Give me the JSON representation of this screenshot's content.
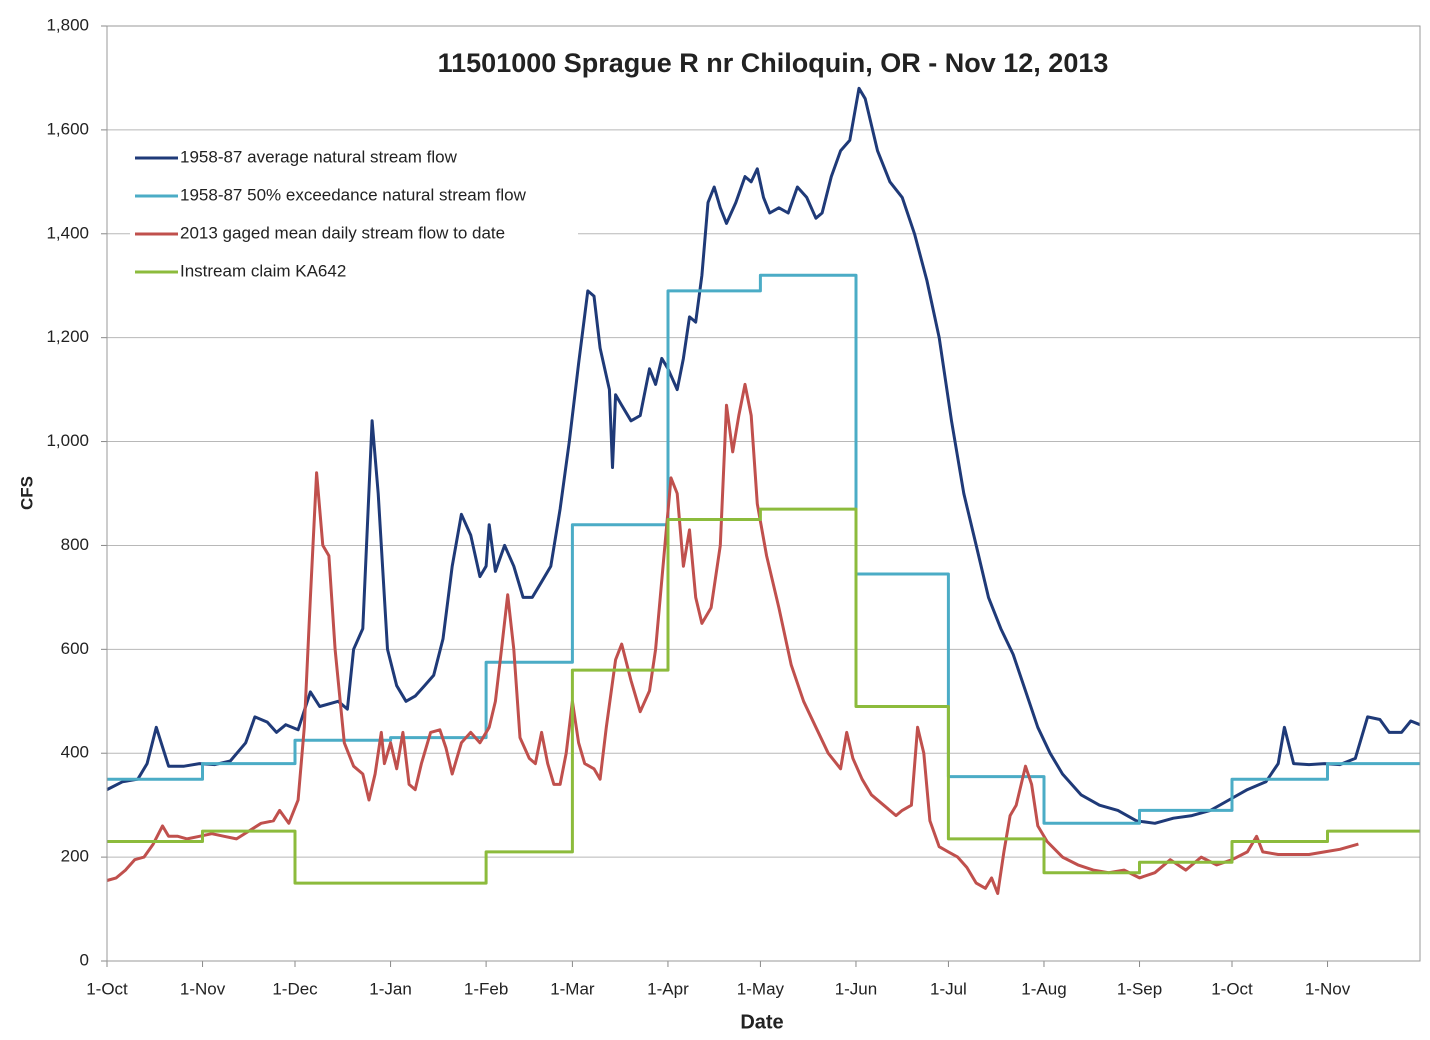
{
  "chart_data": {
    "type": "line",
    "title": "11501000 Sprague R nr Chiloquin, OR   -  Nov 12, 2013",
    "x_label": "Date",
    "y_label": "CFS",
    "xlim": [
      0,
      426
    ],
    "xticks": [
      {
        "value": 0,
        "label": "1-Oct"
      },
      {
        "value": 31,
        "label": "1-Nov"
      },
      {
        "value": 61,
        "label": "1-Dec"
      },
      {
        "value": 92,
        "label": "1-Jan"
      },
      {
        "value": 123,
        "label": "1-Feb"
      },
      {
        "value": 151,
        "label": "1-Mar"
      },
      {
        "value": 182,
        "label": "1-Apr"
      },
      {
        "value": 212,
        "label": "1-May"
      },
      {
        "value": 243,
        "label": "1-Jun"
      },
      {
        "value": 273,
        "label": "1-Jul"
      },
      {
        "value": 304,
        "label": "1-Aug"
      },
      {
        "value": 335,
        "label": "1-Sep"
      },
      {
        "value": 365,
        "label": "1-Oct"
      },
      {
        "value": 396,
        "label": "1-Nov"
      }
    ],
    "ylim": [
      0,
      1800
    ],
    "yticks": [
      0,
      200,
      400,
      600,
      800,
      {
        "value": 1000,
        "label": "1,000"
      },
      {
        "value": 1200,
        "label": "1,200"
      },
      {
        "value": 1400,
        "label": "1,400"
      },
      {
        "value": 1600,
        "label": "1,600"
      },
      {
        "value": 1800,
        "label": "1,800"
      }
    ],
    "grid": true,
    "legend": "upper-left",
    "series": [
      {
        "name": "1958-87 average natural stream flow",
        "color": "#1f3a78",
        "x": [
          0,
          5,
          10,
          13,
          16,
          20,
          25,
          30,
          35,
          40,
          45,
          48,
          52,
          55,
          58,
          62,
          66,
          69,
          75,
          78,
          80,
          83,
          86,
          88,
          91,
          94,
          97,
          100,
          103,
          106,
          109,
          112,
          115,
          118,
          121,
          123,
          124,
          126,
          129,
          132,
          135,
          138,
          141,
          144,
          147,
          150,
          153,
          156,
          158,
          160,
          163,
          164,
          165,
          167,
          170,
          173,
          176,
          178,
          180,
          182,
          185,
          187,
          189,
          191,
          193,
          195,
          197,
          199,
          201,
          204,
          207,
          209,
          211,
          213,
          215,
          218,
          221,
          224,
          227,
          230,
          232,
          235,
          238,
          241,
          244,
          246,
          250,
          254,
          258,
          262,
          266,
          270,
          274,
          278,
          282,
          286,
          290,
          294,
          298,
          302,
          306,
          310,
          316,
          322,
          328,
          334,
          340,
          346,
          352,
          358,
          364,
          370,
          376,
          380,
          382,
          385,
          390,
          395,
          400,
          405,
          409,
          413,
          416,
          420,
          423,
          426
        ],
        "values": [
          330,
          345,
          350,
          380,
          450,
          375,
          375,
          380,
          378,
          385,
          420,
          470,
          460,
          440,
          455,
          445,
          518,
          490,
          500,
          485,
          600,
          640,
          1040,
          900,
          600,
          530,
          500,
          510,
          530,
          550,
          620,
          760,
          860,
          820,
          740,
          760,
          840,
          750,
          800,
          760,
          700,
          700,
          730,
          760,
          870,
          1000,
          1150,
          1290,
          1280,
          1180,
          1100,
          950,
          1090,
          1070,
          1040,
          1050,
          1140,
          1110,
          1160,
          1140,
          1100,
          1160,
          1240,
          1230,
          1320,
          1460,
          1490,
          1450,
          1420,
          1460,
          1510,
          1500,
          1525,
          1470,
          1440,
          1450,
          1440,
          1490,
          1470,
          1430,
          1440,
          1510,
          1560,
          1580,
          1680,
          1660,
          1560,
          1500,
          1470,
          1400,
          1310,
          1200,
          1040,
          900,
          800,
          700,
          640,
          590,
          520,
          450,
          400,
          360,
          320,
          300,
          290,
          270,
          265,
          275,
          280,
          290,
          310,
          330,
          345,
          380,
          450,
          380,
          378,
          380,
          378,
          390,
          470,
          465,
          440,
          440,
          462,
          455
        ]
      },
      {
        "name": "1958-87 50% exceedance natural stream flow",
        "color": "#4bacc6",
        "x": [
          0,
          31,
          31,
          61,
          61,
          92,
          92,
          123,
          123,
          151,
          151,
          182,
          182,
          212,
          212,
          243,
          243,
          273,
          273,
          304,
          304,
          335,
          335,
          365,
          365,
          396,
          396,
          426
        ],
        "values": [
          350,
          350,
          380,
          380,
          425,
          425,
          430,
          430,
          575,
          575,
          840,
          840,
          1290,
          1290,
          1320,
          1320,
          745,
          745,
          355,
          355,
          265,
          265,
          290,
          290,
          350,
          350,
          380,
          380
        ]
      },
      {
        "name": "2013 gaged mean daily stream flow to date",
        "color": "#c0504d",
        "x": [
          0,
          3,
          6,
          9,
          12,
          15,
          18,
          20,
          23,
          26,
          30,
          34,
          38,
          42,
          46,
          50,
          54,
          56,
          59,
          62,
          64,
          66,
          68,
          70,
          72,
          74,
          77,
          80,
          83,
          85,
          87,
          89,
          90,
          92,
          94,
          96,
          98,
          100,
          102,
          105,
          108,
          110,
          112,
          115,
          118,
          121,
          124,
          126,
          128,
          130,
          132,
          134,
          137,
          139,
          141,
          143,
          145,
          147,
          149,
          151,
          153,
          155,
          158,
          160,
          162,
          165,
          167,
          170,
          173,
          176,
          178,
          181,
          183,
          185,
          187,
          189,
          191,
          193,
          196,
          199,
          201,
          203,
          205,
          207,
          209,
          211,
          214,
          218,
          222,
          226,
          230,
          234,
          238,
          240,
          242,
          245,
          248,
          252,
          256,
          258,
          261,
          263,
          265,
          267,
          270,
          273,
          276,
          279,
          282,
          285,
          287,
          289,
          291,
          293,
          295,
          298,
          300,
          302,
          305,
          310,
          315,
          320,
          325,
          330,
          335,
          340,
          345,
          350,
          355,
          360,
          365,
          370,
          373,
          375,
          380,
          385,
          390,
          395,
          400,
          406
        ],
        "values": [
          155,
          160,
          175,
          195,
          200,
          225,
          260,
          240,
          240,
          235,
          240,
          245,
          240,
          235,
          250,
          265,
          270,
          290,
          265,
          310,
          450,
          700,
          940,
          800,
          780,
          600,
          420,
          375,
          360,
          310,
          360,
          440,
          380,
          420,
          370,
          440,
          340,
          330,
          380,
          440,
          445,
          410,
          360,
          420,
          440,
          420,
          450,
          500,
          600,
          705,
          600,
          430,
          390,
          380,
          440,
          380,
          340,
          340,
          400,
          500,
          420,
          380,
          370,
          350,
          450,
          580,
          610,
          540,
          480,
          520,
          600,
          800,
          930,
          900,
          760,
          830,
          700,
          650,
          680,
          800,
          1070,
          980,
          1050,
          1110,
          1050,
          880,
          780,
          680,
          570,
          500,
          450,
          400,
          370,
          440,
          390,
          350,
          320,
          300,
          280,
          290,
          300,
          450,
          400,
          270,
          220,
          210,
          200,
          180,
          150,
          140,
          160,
          130,
          210,
          280,
          300,
          375,
          340,
          260,
          230,
          200,
          185,
          175,
          170,
          175,
          160,
          170,
          195,
          175,
          200,
          185,
          195,
          210,
          240,
          210,
          205,
          205,
          205,
          210,
          215,
          225
        ]
      },
      {
        "name": "Instream claim KA642",
        "color": "#8cbb3c",
        "x": [
          0,
          31,
          31,
          61,
          61,
          123,
          123,
          151,
          151,
          182,
          182,
          212,
          212,
          243,
          243,
          273,
          273,
          304,
          304,
          335,
          335,
          365,
          365,
          396,
          396,
          426
        ],
        "values": [
          230,
          230,
          250,
          250,
          150,
          150,
          210,
          210,
          560,
          560,
          850,
          850,
          870,
          870,
          490,
          490,
          235,
          235,
          170,
          170,
          190,
          190,
          230,
          230,
          250,
          250
        ]
      }
    ]
  }
}
